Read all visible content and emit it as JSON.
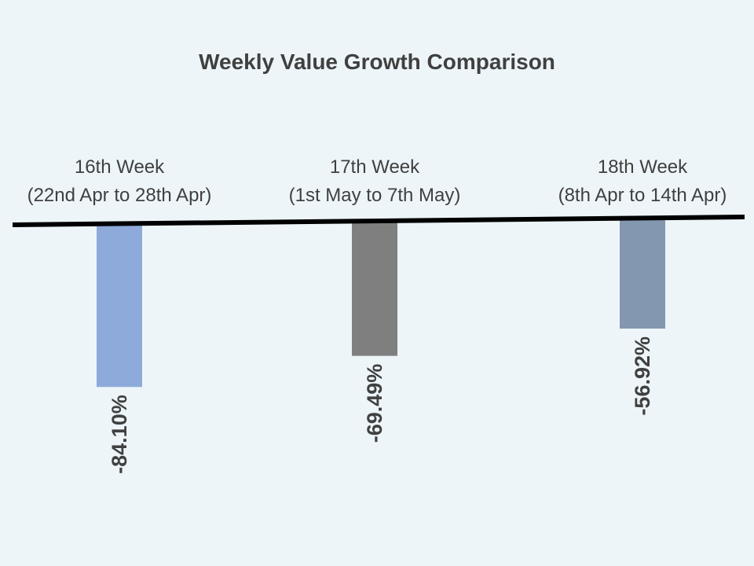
{
  "chart_data": {
    "type": "bar",
    "title": "Weekly Value Growth Comparison",
    "categories": [
      [
        "16th Week",
        "(22nd Apr to 28th Apr)"
      ],
      [
        "17th Week",
        "(1st May to 7th May)"
      ],
      [
        "18th Week",
        "(8th Apr to 14th Apr)"
      ]
    ],
    "values": [
      -84.1,
      -69.49,
      -56.92
    ],
    "data_labels": [
      "-84.10%",
      "-69.49%",
      "-56.92%"
    ],
    "bar_colors": [
      "#8eaadb",
      "#7f7f7f",
      "#8497b0"
    ],
    "axis_color": "#000000",
    "background": "#edf5f9",
    "ylim": [
      -100,
      0
    ],
    "grid": false,
    "legend": "none"
  }
}
